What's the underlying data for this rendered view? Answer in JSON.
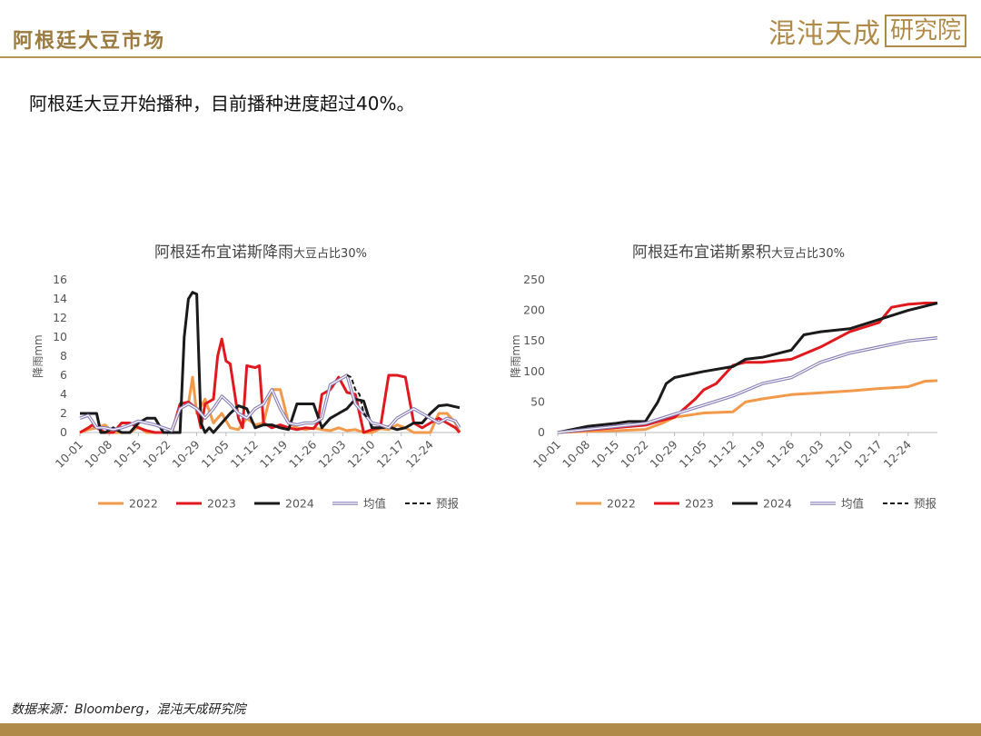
{
  "header": {
    "title": "阿根廷大豆市场",
    "logo_main": "混沌天成",
    "logo_box": "研究院"
  },
  "subtitle": "阿根廷大豆开始播种，目前播种进度超过40%。",
  "source": "数据来源：Bloomberg，混沌天成研究院",
  "colors": {
    "2022": "#f2994a",
    "2023": "#e0191f",
    "2024": "#1a1a1a",
    "avg": "#8a7fb8",
    "forecast": "#1a1a1a",
    "brand": "#b08a48"
  },
  "chart_data": [
    {
      "type": "line",
      "title": "阿根廷布宜诺斯降雨",
      "title_suffix": "大豆占比30%",
      "ylabel": "降雨mm",
      "ylim": [
        0,
        16
      ],
      "yticks": [
        "0",
        "2",
        "4",
        "6",
        "8",
        "10",
        "12",
        "14",
        "16"
      ],
      "xticks": [
        "10-01",
        "10-08",
        "10-15",
        "10-22",
        "10-29",
        "11-05",
        "11-12",
        "11-19",
        "11-26",
        "12-03",
        "12-10",
        "12-17",
        "12-24"
      ],
      "xlim": [
        0,
        91
      ],
      "series": [
        {
          "name": "2022",
          "x": [
            0,
            2,
            4,
            6,
            8,
            10,
            12,
            14,
            16,
            18,
            20,
            22,
            24,
            26,
            27,
            28,
            30,
            32,
            34,
            36,
            38,
            40,
            42,
            44,
            46,
            48,
            50,
            52,
            54,
            56,
            58,
            60,
            62,
            64,
            66,
            68,
            70,
            72,
            74,
            76,
            78,
            80,
            82,
            84,
            86,
            88,
            90,
            91
          ],
          "y": [
            0,
            0.3,
            0.5,
            0.8,
            0,
            0,
            0,
            0.6,
            0,
            0,
            0,
            0,
            2.5,
            3,
            5.8,
            2,
            3.5,
            1,
            2,
            0.5,
            0.3,
            1.5,
            0.8,
            1,
            4.5,
            4.5,
            1,
            0.5,
            0.3,
            0.5,
            0.3,
            0.2,
            0.5,
            0.2,
            0.3,
            0,
            0,
            0.4,
            0.3,
            0.8,
            0.5,
            0,
            0,
            0,
            2,
            2,
            1,
            0
          ]
        },
        {
          "name": "2023",
          "x": [
            0,
            2,
            3,
            4,
            6,
            8,
            10,
            12,
            14,
            16,
            18,
            20,
            22,
            24,
            26,
            28,
            29,
            30,
            32,
            33,
            34,
            35,
            36,
            38,
            39,
            40,
            42,
            43,
            44,
            46,
            48,
            50,
            52,
            54,
            56,
            57,
            58,
            60,
            62,
            64,
            66,
            68,
            70,
            72,
            74,
            76,
            78,
            80,
            82,
            84,
            86,
            88,
            90,
            91
          ],
          "y": [
            0,
            0.5,
            0.8,
            0.5,
            0,
            0,
            1,
            1,
            0.5,
            0.2,
            0,
            0,
            0,
            3,
            3.2,
            2.5,
            0.5,
            3,
            3.5,
            8,
            9.8,
            7.5,
            7.2,
            1.5,
            0.5,
            7,
            6.8,
            7,
            1,
            0.5,
            0.8,
            0.5,
            0.3,
            0.5,
            0.4,
            1,
            4,
            4.5,
            5.8,
            4.2,
            4,
            0,
            0.3,
            0.5,
            6,
            6,
            5.8,
            1,
            0.5,
            1,
            1.5,
            1,
            0.5,
            0
          ]
        },
        {
          "name": "2024",
          "x": [
            0,
            2,
            4,
            5,
            6,
            8,
            10,
            12,
            14,
            16,
            18,
            20,
            22,
            23,
            24,
            25,
            26,
            27,
            28,
            29,
            30,
            31,
            32,
            34,
            36,
            38,
            40,
            42,
            44,
            46,
            48,
            50,
            52,
            54,
            56,
            58,
            60,
            62,
            64,
            66,
            68,
            70,
            72,
            74,
            76,
            78,
            80,
            82,
            84,
            86,
            88,
            90,
            91
          ],
          "y": [
            2,
            2,
            2,
            0,
            0,
            0.5,
            0,
            0,
            1,
            1.5,
            1.5,
            0,
            0,
            0,
            0,
            10,
            14,
            14.7,
            14.5,
            1,
            0,
            0.5,
            0,
            1,
            2,
            2.8,
            2.5,
            0.5,
            0.8,
            0.8,
            0.5,
            0.3,
            3,
            3,
            3,
            0.5,
            1.5,
            2,
            2.5,
            3.5,
            3.3,
            0.5,
            0.5,
            0.6,
            0.3,
            0.5,
            1,
            1,
            2,
            2.8,
            2.9,
            2.7,
            2.6
          ]
        },
        {
          "name": "均值",
          "x": [
            0,
            2,
            4,
            6,
            8,
            10,
            12,
            14,
            16,
            18,
            20,
            22,
            24,
            26,
            28,
            30,
            32,
            34,
            36,
            38,
            40,
            42,
            44,
            46,
            48,
            50,
            52,
            54,
            56,
            58,
            60,
            62,
            64,
            66,
            68,
            70,
            72,
            74,
            76,
            78,
            80,
            82,
            84,
            86,
            88,
            90,
            91
          ],
          "y": [
            1.5,
            1.8,
            0.5,
            0.5,
            0.3,
            0.5,
            0.8,
            1.2,
            1,
            0.8,
            0.5,
            0.2,
            2.5,
            3,
            2.5,
            1.5,
            2.5,
            3.8,
            3,
            2,
            1.5,
            2.5,
            3,
            4.5,
            2.5,
            1,
            0.8,
            1,
            1,
            1.5,
            5,
            5.5,
            6,
            3,
            2,
            1,
            0.8,
            0.5,
            1.5,
            2,
            2.5,
            2,
            1.5,
            1,
            1.5,
            1.2,
            0.5
          ]
        },
        {
          "name": "预报",
          "dashed": true,
          "x": [
            64,
            65,
            66,
            67,
            68,
            69
          ],
          "y": [
            6,
            5.8,
            4.5,
            4,
            2,
            1.5
          ]
        }
      ],
      "legend": "bottom"
    },
    {
      "type": "line",
      "title": "阿根廷布宜诺斯累积",
      "title_suffix": "大豆占比30%",
      "ylabel": "降雨mm",
      "ylim": [
        0,
        250
      ],
      "yticks": [
        "0",
        "50",
        "100",
        "150",
        "200",
        "250"
      ],
      "xticks": [
        "10-01",
        "10-08",
        "10-15",
        "10-22",
        "10-29",
        "11-05",
        "11-12",
        "11-19",
        "11-26",
        "12-03",
        "12-10",
        "12-17",
        "12-24"
      ],
      "xlim": [
        0,
        91
      ],
      "series": [
        {
          "name": "2022",
          "x": [
            0,
            7,
            14,
            21,
            25,
            28,
            35,
            42,
            45,
            49,
            56,
            63,
            70,
            77,
            84,
            88,
            91
          ],
          "y": [
            0,
            2,
            3,
            5,
            15,
            25,
            32,
            34,
            50,
            55,
            62,
            65,
            68,
            72,
            75,
            84,
            85
          ]
        },
        {
          "name": "2023",
          "x": [
            0,
            7,
            14,
            21,
            25,
            28,
            33,
            35,
            38,
            42,
            45,
            49,
            56,
            63,
            70,
            77,
            80,
            84,
            88,
            91
          ],
          "y": [
            0,
            4,
            8,
            12,
            20,
            25,
            55,
            70,
            80,
            110,
            115,
            115,
            120,
            140,
            165,
            180,
            205,
            210,
            212,
            212
          ]
        },
        {
          "name": "2024",
          "x": [
            0,
            7,
            14,
            17,
            21,
            24,
            26,
            28,
            35,
            42,
            45,
            49,
            56,
            59,
            63,
            70,
            77,
            84,
            91
          ],
          "y": [
            0,
            10,
            15,
            18,
            18,
            50,
            80,
            90,
            100,
            108,
            120,
            123,
            135,
            160,
            165,
            170,
            185,
            200,
            212
          ]
        },
        {
          "name": "均值",
          "x": [
            0,
            7,
            14,
            21,
            28,
            35,
            42,
            49,
            56,
            63,
            70,
            77,
            84,
            91
          ],
          "y": [
            0,
            5,
            10,
            15,
            30,
            45,
            60,
            80,
            90,
            115,
            130,
            140,
            150,
            155
          ]
        }
      ],
      "legend": "bottom"
    }
  ],
  "legend_labels": [
    "2022",
    "2023",
    "2024",
    "均值",
    "预报"
  ]
}
